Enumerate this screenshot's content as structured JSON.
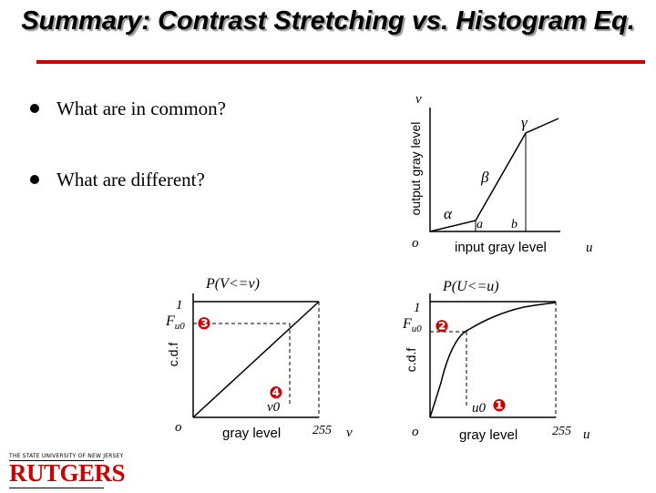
{
  "slide": {
    "title": "Summary:  Contrast Stretching vs. Histogram Eq.",
    "bullets": [
      "What are in common?",
      "What are different?"
    ]
  },
  "mapping_graph": {
    "y_axis_label": "output gray level",
    "x_axis_label": "input gray level",
    "v": "v",
    "u": "u",
    "origin": "o",
    "a": "a",
    "b": "b",
    "alpha": "α",
    "beta": "β",
    "gamma": "γ"
  },
  "cdf_v_graph": {
    "title": "P(V<=v)",
    "y_axis_label": "c.d.f",
    "one": "1",
    "f_base": "F",
    "f_sub": "u0",
    "marker": "❸",
    "v0_marker": "❹",
    "v0": "v0",
    "origin": "o",
    "x_axis_label": "gray level",
    "max": "255",
    "var": "v"
  },
  "cdf_u_graph": {
    "title": "P(U<=u)",
    "y_axis_label": "c.d.f",
    "one": "1",
    "f_base": "F",
    "f_sub": "u0",
    "marker": "❷",
    "u0": "u0",
    "u0_marker": "❶",
    "origin": "o",
    "x_axis_label": "gray level",
    "max": "255",
    "var": "u"
  },
  "logo": {
    "line": "THE STATE UNIVERSITY OF NEW JERSEY",
    "word": "RUTGERS"
  },
  "colors": {
    "accent": "#cc0000"
  }
}
